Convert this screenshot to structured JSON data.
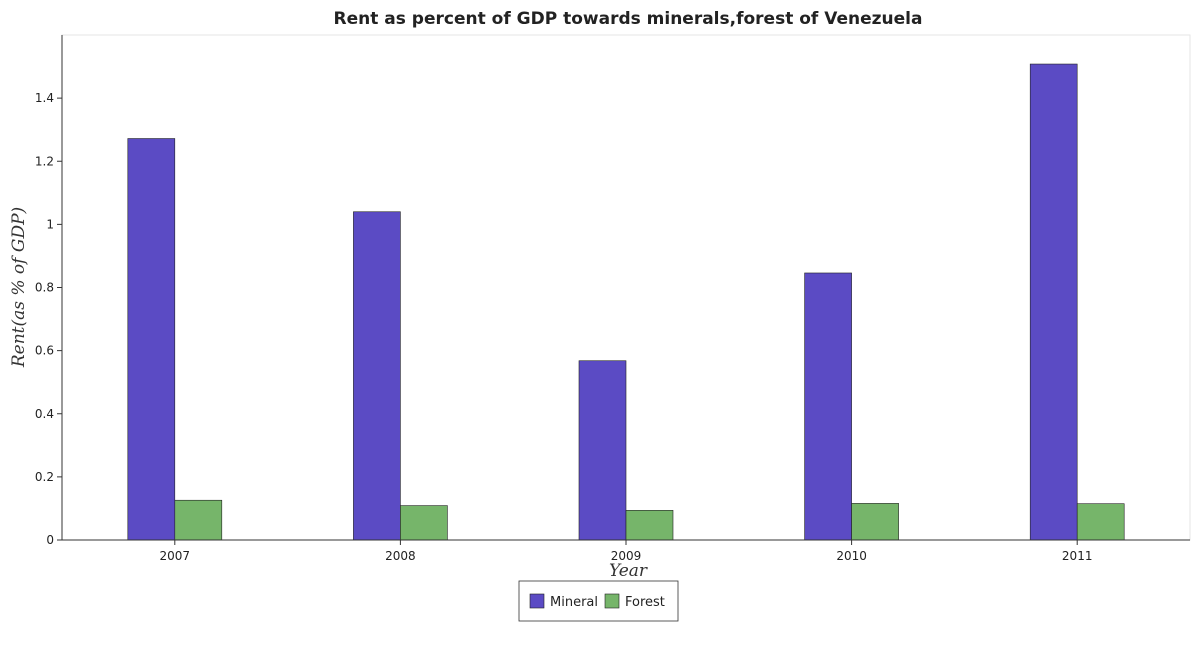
{
  "chart_data": {
    "type": "bar",
    "title": "Rent as percent of GDP towards minerals,forest of Venezuela",
    "xlabel": "Year",
    "ylabel": "Rent(as % of GDP)",
    "categories": [
      "2007",
      "2008",
      "2009",
      "2010",
      "2011"
    ],
    "series": [
      {
        "name": "Mineral",
        "color": "#5b4bc4",
        "values": [
          1.272,
          1.04,
          0.568,
          0.846,
          1.508
        ]
      },
      {
        "name": "Forest",
        "color": "#76b56a",
        "values": [
          0.126,
          0.109,
          0.094,
          0.116,
          0.115
        ]
      }
    ],
    "ylim": [
      0,
      1.6
    ],
    "yticks": [
      "0",
      "0.2",
      "0.4",
      "0.6",
      "0.8",
      "1",
      "1.2",
      "1.4"
    ],
    "grid": false,
    "legend_position": "bottom-center"
  }
}
